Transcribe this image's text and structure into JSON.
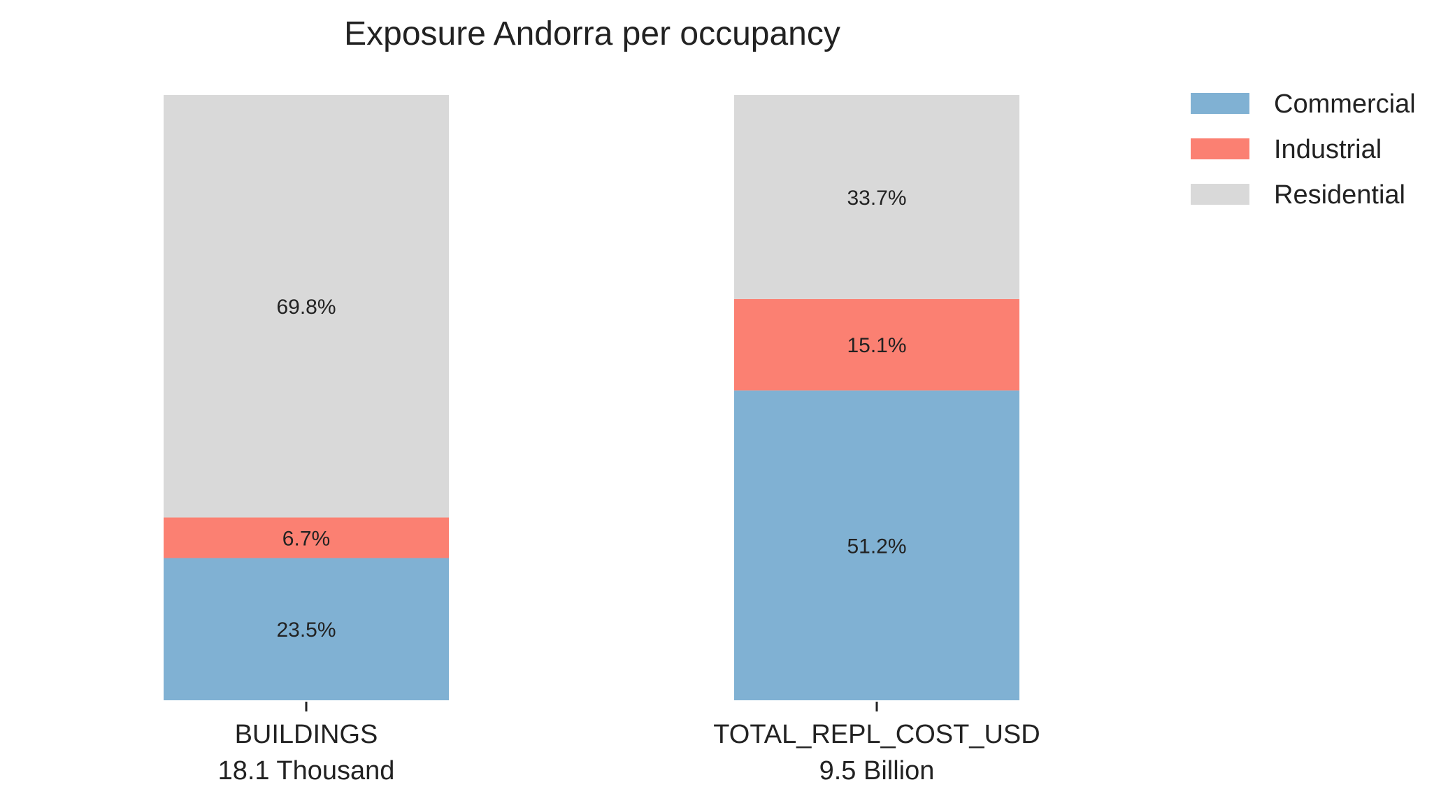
{
  "chart_data": {
    "type": "bar",
    "stacked": true,
    "normalized_percent": true,
    "title": "Exposure Andorra per occupancy",
    "categories": [
      "BUILDINGS",
      "TOTAL_REPL_COST_USD"
    ],
    "category_totals": [
      "18.1 Thousand",
      "9.5 Billion"
    ],
    "series": [
      {
        "name": "Commercial",
        "color": "#80b1d3",
        "values": [
          23.5,
          51.2
        ],
        "labels": [
          "23.5%",
          "51.2%"
        ]
      },
      {
        "name": "Industrial",
        "color": "#fb8072",
        "values": [
          6.7,
          15.1
        ],
        "labels": [
          "6.7%",
          "15.1%"
        ]
      },
      {
        "name": "Residential",
        "color": "#d9d9d9",
        "values": [
          69.8,
          33.7
        ],
        "labels": [
          "69.8%",
          "33.7%"
        ]
      }
    ],
    "ylim": [
      0,
      100
    ],
    "grid": false,
    "y_axis_visible": false,
    "legend_position": "top-right, outside plot"
  }
}
